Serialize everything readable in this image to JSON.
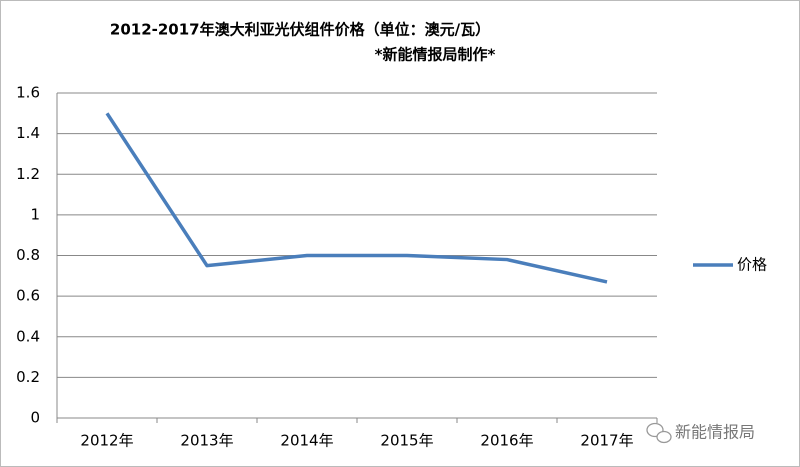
{
  "chart_data": {
    "type": "line",
    "title": "2012-2017年澳大利亚光伏组件价格（单位：澳元/瓦）",
    "subtitle": "*新能情报局制作*",
    "categories": [
      "2012年",
      "2013年",
      "2014年",
      "2015年",
      "2016年",
      "2017年"
    ],
    "series": [
      {
        "name": "价格",
        "color": "#4a7ebb",
        "values": [
          1.5,
          0.75,
          0.8,
          0.8,
          0.78,
          0.67
        ]
      }
    ],
    "ylim": [
      0,
      1.6
    ],
    "yticks": [
      0,
      0.2,
      0.4,
      0.6,
      0.8,
      1,
      1.2,
      1.4,
      1.6
    ],
    "grid": true,
    "legend": "right"
  },
  "watermark": "新能情报局"
}
